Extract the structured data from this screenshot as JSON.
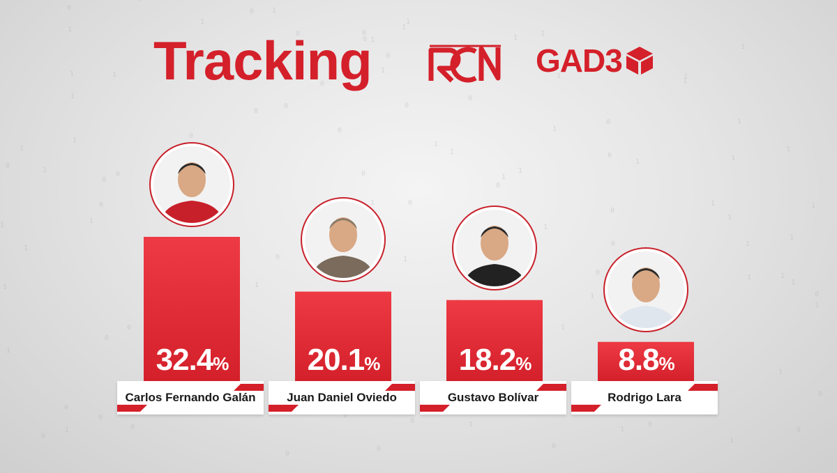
{
  "header": {
    "title": "Tracking",
    "logos": {
      "rcn": "RCN",
      "gad3": "GAD3"
    }
  },
  "colors": {
    "brand_red": "#d4202a",
    "bar_red": "#e8303a",
    "card_white": "#ffffff",
    "label_dark": "#1a1a1a"
  },
  "icons": [
    "candidate-photo-icon",
    "rcn-logo-icon",
    "gad3-cube-icon"
  ],
  "chart_data": {
    "type": "bar",
    "title": "Tracking",
    "categories": [
      "Carlos Fernando Galán",
      "Juan Daniel Oviedo",
      "Gustavo Bolívar",
      "Rodrigo Lara"
    ],
    "values": [
      32.4,
      20.1,
      18.2,
      8.8
    ],
    "value_labels": [
      "32.4",
      "20.1",
      "18.2",
      "8.8"
    ],
    "unit": "%",
    "ylim": [
      0,
      35
    ],
    "grid": false,
    "legend": "none"
  }
}
